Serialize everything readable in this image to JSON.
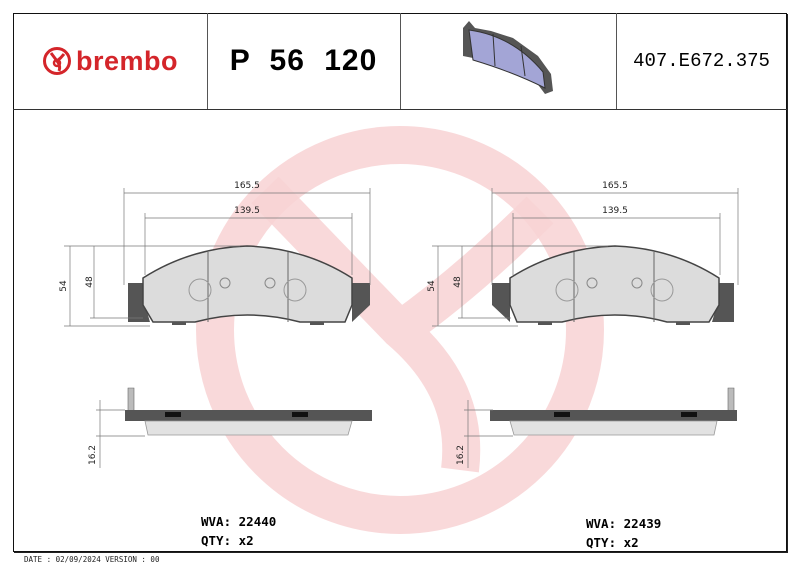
{
  "header": {
    "brand": "brembo",
    "product_code": "P 56 120",
    "reference": "407.E672.375",
    "brand_color": "#d4252a"
  },
  "dimensions": {
    "overall_width": "165.5",
    "friction_width": "139.5",
    "overall_height": "54",
    "friction_height": "48",
    "thickness": "16.2"
  },
  "pads": [
    {
      "wva_label": "WVA:",
      "wva": "22440",
      "qty_label": "QTY:",
      "qty": "x2"
    },
    {
      "wva_label": "WVA:",
      "wva": "22439",
      "qty_label": "QTY:",
      "qty": "x2"
    }
  ],
  "footer": {
    "date_version": "DATE : 02/09/2024 VERSION : 00"
  }
}
